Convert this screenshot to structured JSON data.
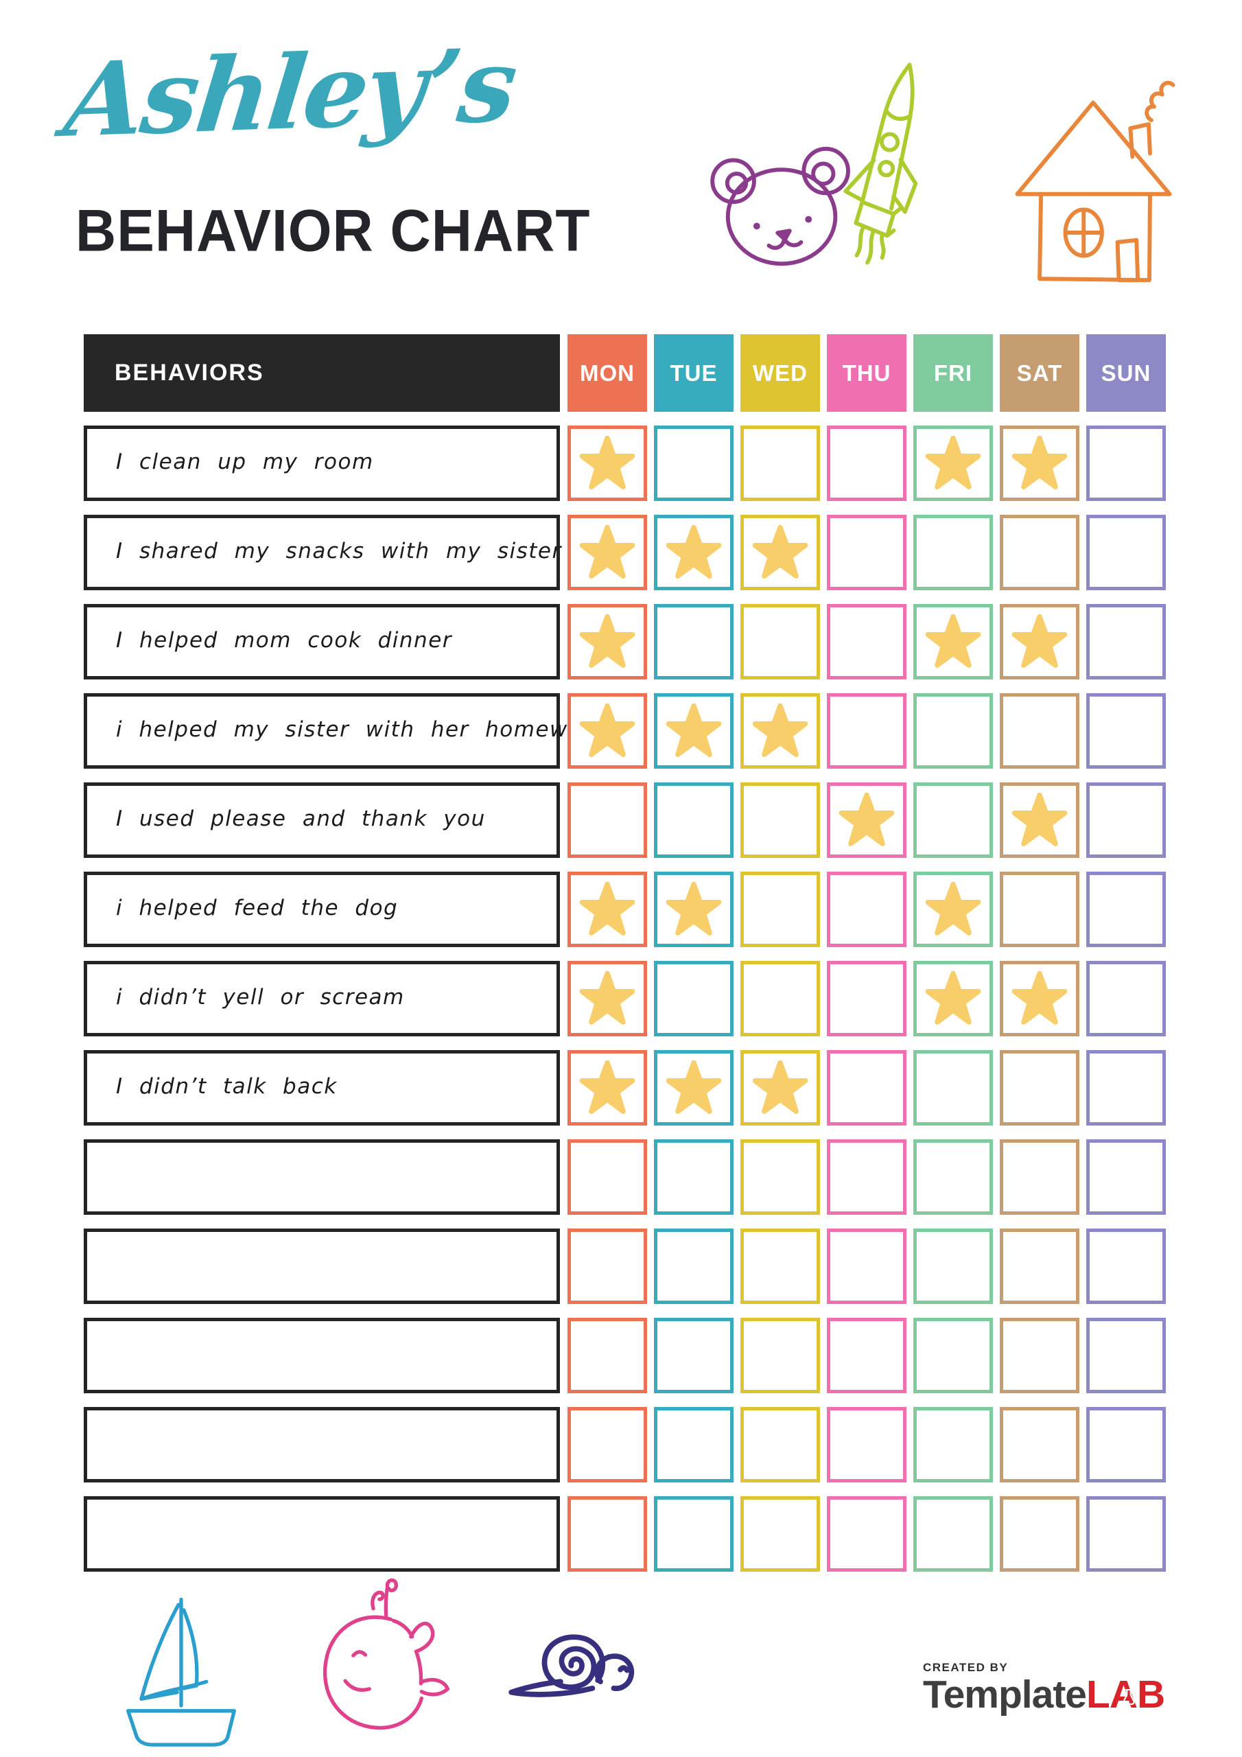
{
  "title": {
    "script_name": "Ashley’s",
    "heading": "BEHAVIOR CHART"
  },
  "table": {
    "behaviors_header": "BEHAVIORS",
    "star_color": "#F8CE6B",
    "header_bg": "#272727",
    "days": [
      {
        "label": "MON",
        "color": "#ED7254"
      },
      {
        "label": "TUE",
        "color": "#36ACBE"
      },
      {
        "label": "WED",
        "color": "#DFC431"
      },
      {
        "label": "THU",
        "color": "#F06FB1"
      },
      {
        "label": "FRI",
        "color": "#7FCB9E"
      },
      {
        "label": "SAT",
        "color": "#C59D70"
      },
      {
        "label": "SUN",
        "color": "#8D89C7"
      }
    ],
    "rows": [
      {
        "label": "I clean up my room",
        "stars": [
          1,
          0,
          0,
          0,
          1,
          1,
          0
        ]
      },
      {
        "label": "I shared my snacks with my sister",
        "stars": [
          1,
          1,
          1,
          0,
          0,
          0,
          0
        ]
      },
      {
        "label": "I helped mom cook dinner",
        "stars": [
          1,
          0,
          0,
          0,
          1,
          1,
          0
        ]
      },
      {
        "label": "i helped my sister with her homework",
        "stars": [
          1,
          1,
          1,
          0,
          0,
          0,
          0
        ]
      },
      {
        "label": "I used please and thank you",
        "stars": [
          0,
          0,
          0,
          1,
          0,
          1,
          0
        ]
      },
      {
        "label": "i helped feed the dog",
        "stars": [
          1,
          1,
          0,
          0,
          1,
          0,
          0
        ]
      },
      {
        "label": "i didn’t yell or scream",
        "stars": [
          1,
          0,
          0,
          0,
          1,
          1,
          0
        ]
      },
      {
        "label": "I didn’t talk back",
        "stars": [
          1,
          1,
          1,
          0,
          0,
          0,
          0
        ]
      },
      {
        "label": "",
        "stars": [
          0,
          0,
          0,
          0,
          0,
          0,
          0
        ]
      },
      {
        "label": "",
        "stars": [
          0,
          0,
          0,
          0,
          0,
          0,
          0
        ]
      },
      {
        "label": "",
        "stars": [
          0,
          0,
          0,
          0,
          0,
          0,
          0
        ]
      },
      {
        "label": "",
        "stars": [
          0,
          0,
          0,
          0,
          0,
          0,
          0
        ]
      },
      {
        "label": "",
        "stars": [
          0,
          0,
          0,
          0,
          0,
          0,
          0
        ]
      }
    ]
  },
  "doodles": {
    "bear_color": "#8A3B8C",
    "rocket_color": "#ACCB2E",
    "house_color": "#E8873B",
    "sailboat_color": "#2B9ECD",
    "whale_color": "#E0418D",
    "snail_color": "#36307E"
  },
  "footer": {
    "created_by": "CREATED BY",
    "logo_template": "Template",
    "logo_lab": "LAB"
  }
}
